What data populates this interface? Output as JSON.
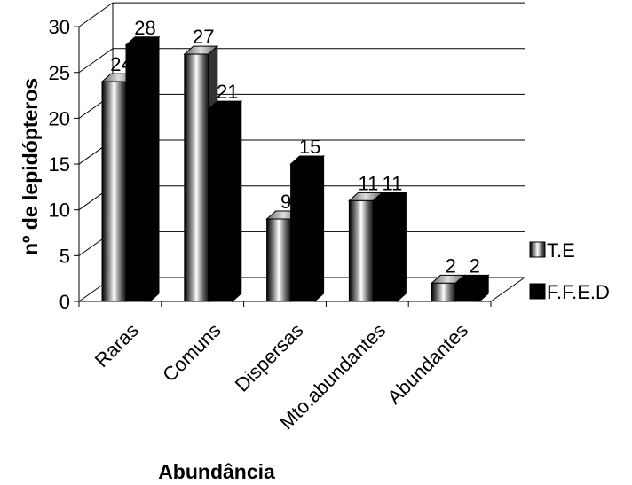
{
  "chart_data": {
    "type": "bar",
    "style": "3d-clustered-column",
    "categories": [
      "Raras",
      "Comuns",
      "Dispersas",
      "Mto.abundantes",
      "Abundantes"
    ],
    "series": [
      {
        "name": "T.E",
        "values": [
          24,
          27,
          9,
          11,
          2
        ],
        "fill": "striped-gray"
      },
      {
        "name": "F.F.E.D",
        "values": [
          28,
          21,
          15,
          11,
          2
        ],
        "color": "#000000"
      }
    ],
    "xlabel": "Abundância",
    "ylabel": "nº de lepidópteros",
    "ylim": [
      0,
      30
    ],
    "yticks": [
      0,
      5,
      10,
      15,
      20,
      25,
      30
    ],
    "grid": true,
    "legend": "right",
    "data_labels": true
  }
}
